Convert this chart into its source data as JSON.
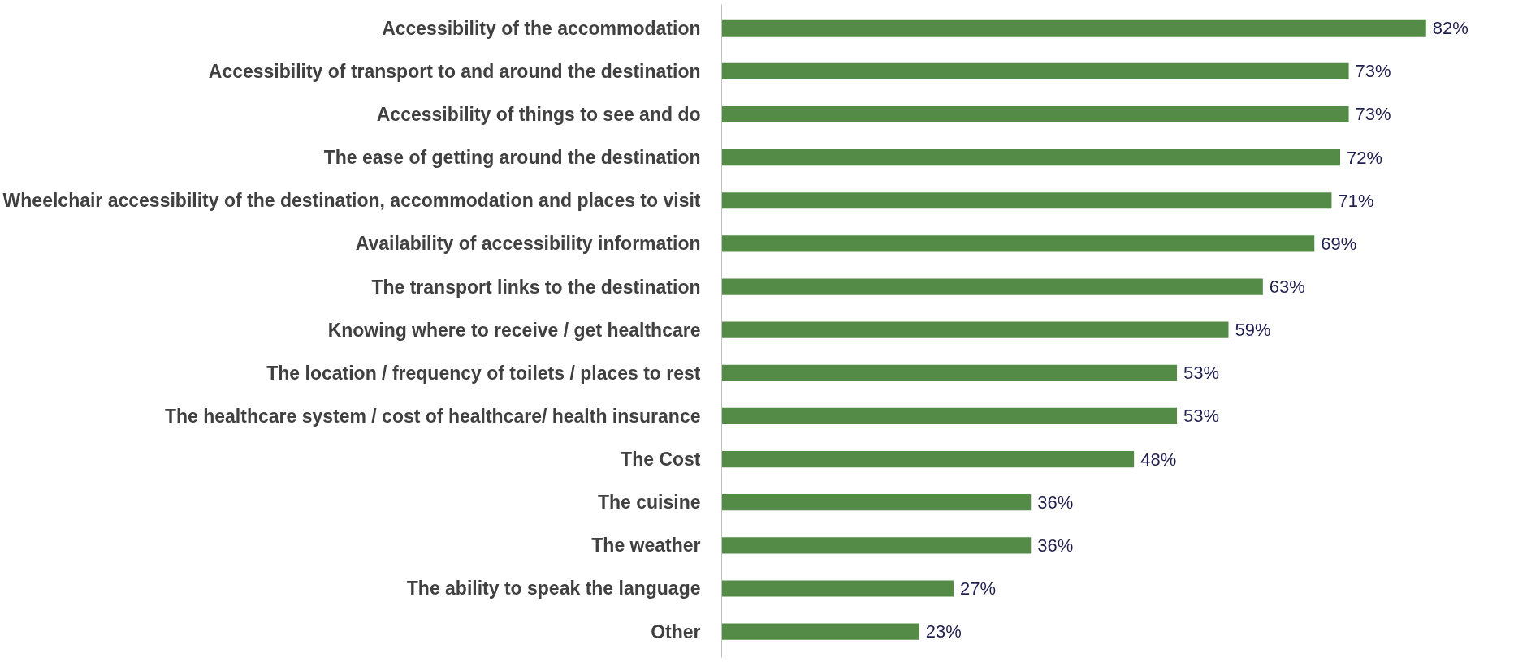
{
  "chart_data": {
    "type": "bar",
    "orientation": "horizontal",
    "categories": [
      "Accessibility of the accommodation",
      "Accessibility of transport to and around the destination",
      "Accessibility of things to see and do",
      "The ease of getting around the destination",
      "Wheelchair accessibility of the destination, accommodation and places to visit",
      "Availability of accessibility information",
      "The transport links to the destination",
      "Knowing where to receive / get healthcare",
      "The location / frequency of toilets / places to rest",
      "The healthcare system / cost of healthcare/ health insurance",
      "The Cost",
      "The cuisine",
      "The weather",
      "The ability to speak the language",
      "Other"
    ],
    "values": [
      82,
      73,
      73,
      72,
      71,
      69,
      63,
      59,
      53,
      53,
      48,
      36,
      36,
      27,
      23
    ],
    "value_labels": [
      "82%",
      "73%",
      "73%",
      "72%",
      "71%",
      "69%",
      "63%",
      "59%",
      "53%",
      "53%",
      "48%",
      "36%",
      "36%",
      "27%",
      "23%"
    ],
    "color": "#548b46",
    "tick_labels": "y"
  }
}
